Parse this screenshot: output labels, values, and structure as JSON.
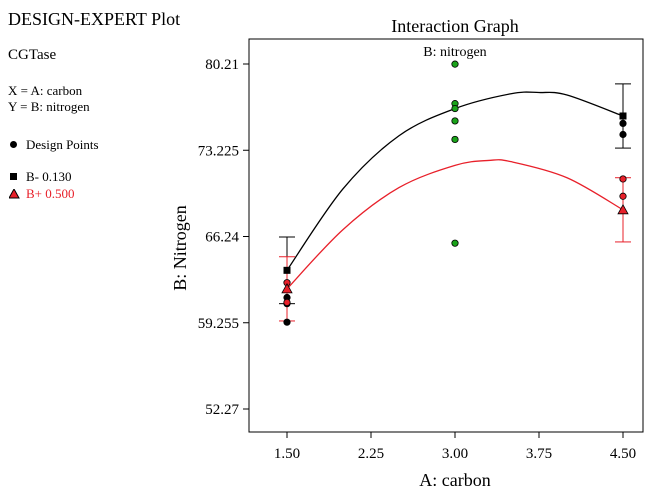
{
  "header": {
    "software": "DESIGN-EXPERT Plot",
    "response": "CGTase",
    "x_def": "X = A: carbon",
    "y_def": "Y = B: nitrogen"
  },
  "legend": {
    "design_points": "Design Points",
    "b_minus": "B- 0.130",
    "b_plus": "B+ 0.500"
  },
  "colors": {
    "b_minus": "#000000",
    "b_plus": "#e8202a",
    "design_points_center": "#1aa31a"
  },
  "chart_data": {
    "type": "line",
    "title": "Interaction Graph",
    "subtitle": "B: nitrogen",
    "xlabel": "A: carbon",
    "ylabel": "B: Nitrogen",
    "xlim": [
      1.5,
      4.5
    ],
    "ylim": [
      52.27,
      80.21
    ],
    "x_ticks": [
      "1.50",
      "2.25",
      "3.00",
      "3.75",
      "4.50"
    ],
    "y_ticks": [
      "52.27",
      "59.255",
      "66.24",
      "73.225",
      "80.21"
    ],
    "x_tick_values": [
      1.5,
      2.25,
      3.0,
      3.75,
      4.5
    ],
    "y_tick_values": [
      52.27,
      59.255,
      66.24,
      73.225,
      80.21
    ],
    "series": [
      {
        "name": "B- 0.130",
        "color": "#000000",
        "marker": "square",
        "curve": [
          [
            1.5,
            63.5
          ],
          [
            2.0,
            70.1
          ],
          [
            2.5,
            74.4
          ],
          [
            3.0,
            76.6
          ],
          [
            3.5,
            77.8
          ],
          [
            3.75,
            77.9
          ],
          [
            4.0,
            77.7
          ],
          [
            4.5,
            76.0
          ]
        ],
        "points": [
          {
            "x": 1.5,
            "y": 63.5,
            "err": [
              60.8,
              66.2
            ]
          },
          {
            "x": 4.5,
            "y": 76.0,
            "err": [
              73.4,
              78.6
            ]
          }
        ]
      },
      {
        "name": "B+ 0.500",
        "color": "#e8202a",
        "marker": "triangle",
        "curve": [
          [
            1.5,
            62.0
          ],
          [
            2.0,
            66.8
          ],
          [
            2.5,
            70.2
          ],
          [
            3.0,
            72.0
          ],
          [
            3.3,
            72.4
          ],
          [
            3.5,
            72.3
          ],
          [
            4.0,
            71.0
          ],
          [
            4.5,
            68.4
          ]
        ],
        "points": [
          {
            "x": 1.5,
            "y": 62.0,
            "err": [
              59.4,
              64.6
            ]
          },
          {
            "x": 4.5,
            "y": 68.4,
            "err": [
              65.8,
              71.0
            ]
          }
        ]
      }
    ],
    "design_points": [
      {
        "x": 1.5,
        "y": 59.3,
        "color": "#000000"
      },
      {
        "x": 1.5,
        "y": 60.8,
        "color": "#000000"
      },
      {
        "x": 1.5,
        "y": 61.3,
        "color": "#000000"
      },
      {
        "x": 1.5,
        "y": 62.5,
        "color": "#e8202a"
      },
      {
        "x": 1.5,
        "y": 60.9,
        "color": "#e8202a"
      },
      {
        "x": 3.0,
        "y": 80.2,
        "color": "#1aa31a"
      },
      {
        "x": 3.0,
        "y": 77.0,
        "color": "#1aa31a"
      },
      {
        "x": 3.0,
        "y": 76.6,
        "color": "#1aa31a"
      },
      {
        "x": 3.0,
        "y": 75.6,
        "color": "#1aa31a"
      },
      {
        "x": 3.0,
        "y": 74.1,
        "color": "#1aa31a"
      },
      {
        "x": 3.0,
        "y": 65.7,
        "color": "#1aa31a"
      },
      {
        "x": 4.5,
        "y": 75.4,
        "color": "#000000"
      },
      {
        "x": 4.5,
        "y": 74.5,
        "color": "#000000"
      },
      {
        "x": 4.5,
        "y": 70.9,
        "color": "#e8202a"
      },
      {
        "x": 4.5,
        "y": 69.5,
        "color": "#e8202a"
      }
    ]
  }
}
